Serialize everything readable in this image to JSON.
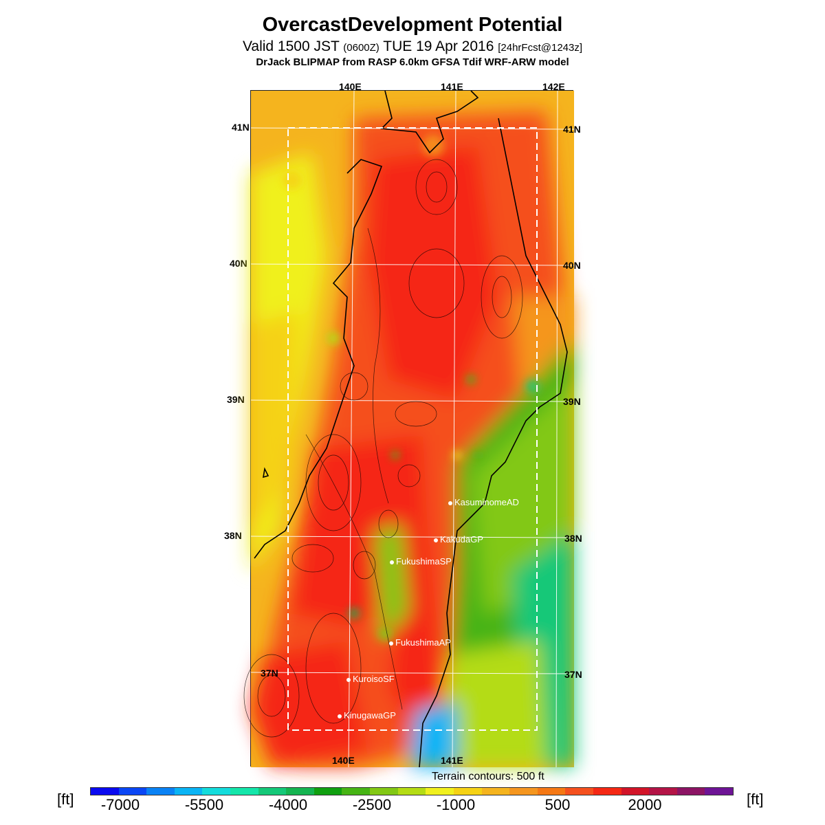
{
  "title": "OvercastDevelopment Potential",
  "subtitle": {
    "valid": "Valid 1500 JST",
    "utc": "(0600Z)",
    "date": "TUE 19 Apr 2016",
    "forecast": "[24hrFcst@1243z]"
  },
  "model_line": "DrJack BLIPMAP from RASP 6.0km GFSA Tdif WRF-ARW model",
  "map": {
    "lon_labels_top": [
      "140E",
      "141E",
      "142E"
    ],
    "lon_labels_bottom": [
      "140E",
      "141E"
    ],
    "lat_labels_left": [
      "41N",
      "40N",
      "39N",
      "38N",
      "37N"
    ],
    "lat_labels_right": [
      "41N",
      "40N",
      "39N",
      "38N",
      "37N"
    ],
    "sites": [
      {
        "name": "KasuminomeAD"
      },
      {
        "name": "KakudaGP"
      },
      {
        "name": "FukushimaSP"
      },
      {
        "name": "FukushimaAP"
      },
      {
        "name": "KuroisoSF"
      },
      {
        "name": "KinugawaGP"
      }
    ],
    "terrain_note": "Terrain contours: 500 ft"
  },
  "colorbar": {
    "unit_left": "[ft]",
    "unit_right": "[ft]",
    "tick_labels": [
      "-7000",
      "-5500",
      "-4000",
      "-2500",
      "-1000",
      "500",
      "2000"
    ],
    "colors": [
      "#0a0af0",
      "#0a46f5",
      "#0a82f5",
      "#0ab4f5",
      "#14dcdc",
      "#14e6aa",
      "#14c878",
      "#14b450",
      "#10a010",
      "#46b414",
      "#82c814",
      "#b4dc14",
      "#f0f01e",
      "#f5d214",
      "#f5b41e",
      "#f5961e",
      "#f57814",
      "#f5501e",
      "#f52814",
      "#d21428",
      "#b41446",
      "#8c1464",
      "#6e1496"
    ]
  }
}
